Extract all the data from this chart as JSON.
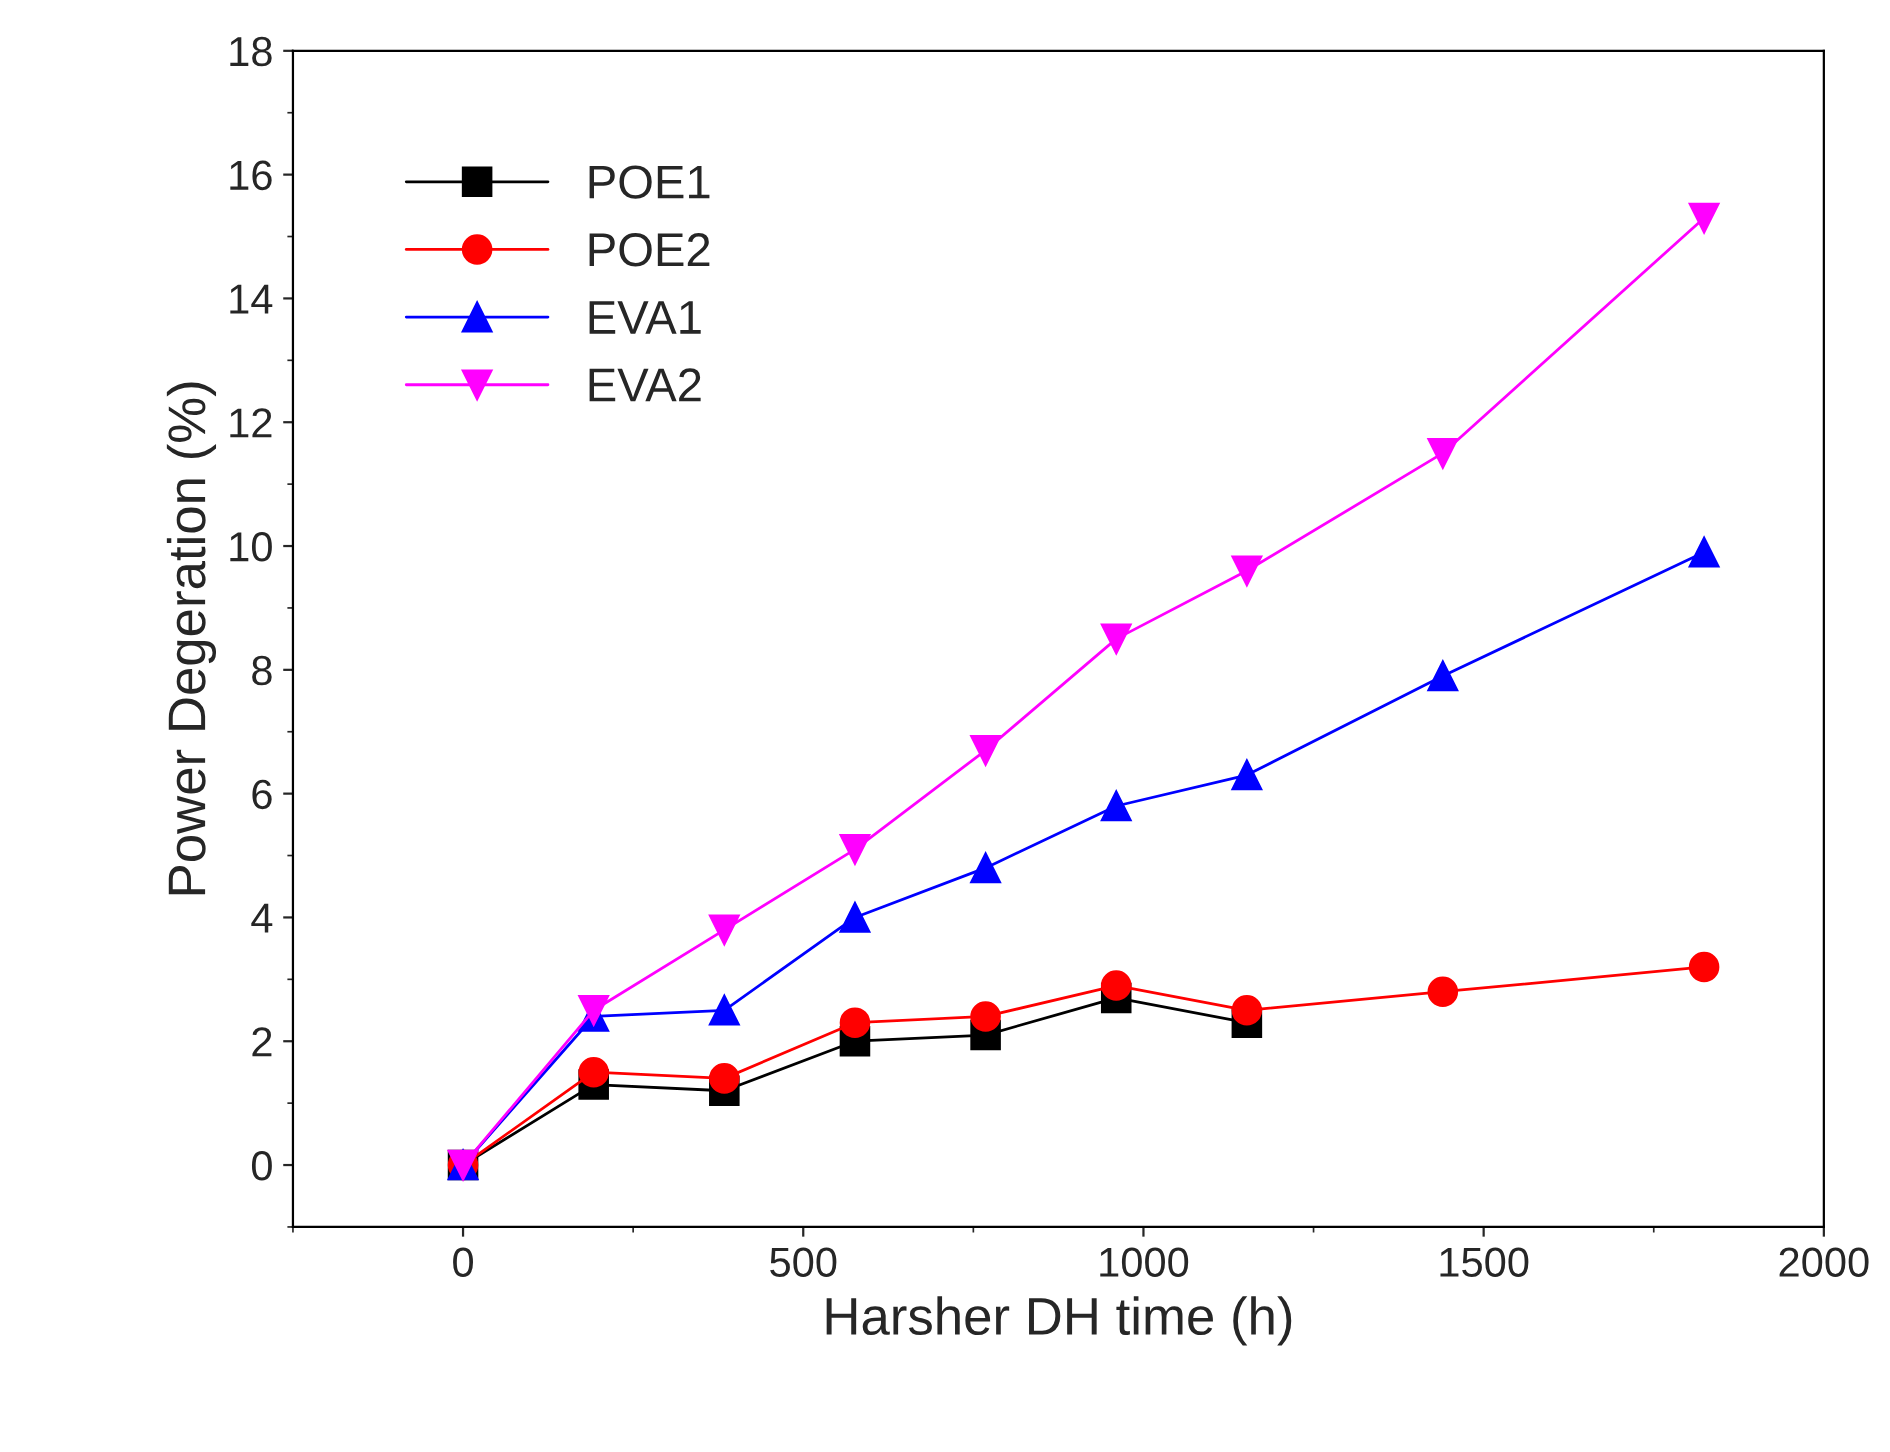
{
  "chart_data": {
    "type": "line",
    "xlabel": "Harsher DH time (h)",
    "ylabel": "Power Degeration (%)",
    "xlim": [
      -250,
      2000
    ],
    "xticks": [
      0,
      500,
      1000,
      1500,
      2000
    ],
    "ylim": [
      -1,
      18
    ],
    "yticks": [
      0,
      2,
      4,
      6,
      8,
      10,
      12,
      14,
      16,
      18
    ],
    "grid": false,
    "legend": "top left",
    "line_style": "solid",
    "series": [
      {
        "name": "POE1",
        "color": "#000000",
        "marker": "square",
        "x": [
          0,
          192,
          384,
          576,
          768,
          960,
          1152
        ],
        "values": [
          0,
          1.3,
          1.2,
          2.0,
          2.1,
          2.7,
          2.3
        ]
      },
      {
        "name": "POE2",
        "color": "#ff0000",
        "marker": "circle",
        "x": [
          0,
          192,
          384,
          576,
          768,
          960,
          1152,
          1440,
          1824
        ],
        "values": [
          0,
          1.5,
          1.4,
          2.3,
          2.4,
          2.9,
          2.5,
          2.8,
          3.2
        ]
      },
      {
        "name": "EVA1",
        "color": "#0000ff",
        "marker": "triangle",
        "x": [
          0,
          192,
          384,
          576,
          768,
          960,
          1152,
          1440,
          1824
        ],
        "values": [
          0,
          2.4,
          2.5,
          4.0,
          4.8,
          5.8,
          6.3,
          7.9,
          9.9
        ]
      },
      {
        "name": "EVA2",
        "color": "#ff00ff",
        "marker": "triangle_down",
        "x": [
          0,
          192,
          384,
          576,
          768,
          960,
          1152,
          1440,
          1824
        ],
        "values": [
          0,
          2.5,
          3.8,
          5.1,
          6.7,
          8.5,
          9.6,
          11.5,
          15.3
        ]
      }
    ]
  }
}
